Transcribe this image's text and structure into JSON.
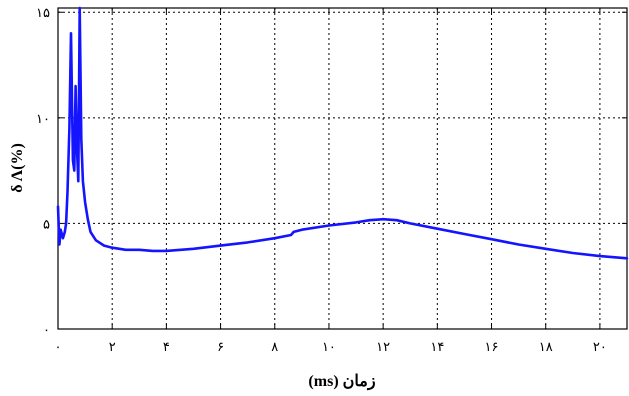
{
  "chart_data": {
    "type": "line",
    "title": "",
    "xlabel": "زمان (ms)",
    "ylabel": "δ Λ(%)",
    "xlim": [
      0,
      21
    ],
    "ylim": [
      0,
      15.2
    ],
    "grid": true,
    "x_ticks": [
      0,
      2,
      4,
      6,
      8,
      10,
      12,
      14,
      16,
      18,
      20
    ],
    "x_tick_labels": [
      "۰",
      "۲",
      "۴",
      "۶",
      "۸",
      "۱۰",
      "۱۲",
      "۱۴",
      "۱۶",
      "۱۸",
      "۲۰"
    ],
    "y_ticks": [
      0,
      5,
      10,
      15
    ],
    "y_tick_labels": [
      "۰",
      "۵",
      "۱۰",
      "۱۵"
    ],
    "line_color": "#1414ff",
    "series": [
      {
        "points": [
          [
            0.0,
            5.8
          ],
          [
            0.05,
            4.0
          ],
          [
            0.1,
            4.7
          ],
          [
            0.18,
            4.3
          ],
          [
            0.25,
            4.6
          ],
          [
            0.3,
            5.0
          ],
          [
            0.35,
            6.5
          ],
          [
            0.42,
            9.5
          ],
          [
            0.48,
            14.0
          ],
          [
            0.55,
            8.0
          ],
          [
            0.6,
            7.5
          ],
          [
            0.65,
            11.5
          ],
          [
            0.7,
            8.5
          ],
          [
            0.75,
            7.0
          ],
          [
            0.8,
            15.2
          ],
          [
            0.86,
            9.0
          ],
          [
            0.92,
            7.0
          ],
          [
            1.0,
            6.0
          ],
          [
            1.1,
            5.2
          ],
          [
            1.2,
            4.6
          ],
          [
            1.4,
            4.2
          ],
          [
            1.7,
            3.95
          ],
          [
            2.0,
            3.85
          ],
          [
            2.5,
            3.75
          ],
          [
            3.0,
            3.75
          ],
          [
            3.5,
            3.7
          ],
          [
            4.0,
            3.7
          ],
          [
            5.0,
            3.8
          ],
          [
            6.0,
            3.95
          ],
          [
            7.0,
            4.1
          ],
          [
            8.0,
            4.3
          ],
          [
            8.6,
            4.45
          ],
          [
            8.7,
            4.6
          ],
          [
            9.0,
            4.7
          ],
          [
            10.0,
            4.9
          ],
          [
            11.0,
            5.05
          ],
          [
            11.5,
            5.15
          ],
          [
            12.0,
            5.2
          ],
          [
            12.5,
            5.15
          ],
          [
            13.0,
            5.0
          ],
          [
            14.0,
            4.75
          ],
          [
            15.0,
            4.5
          ],
          [
            16.0,
            4.25
          ],
          [
            17.0,
            4.0
          ],
          [
            18.0,
            3.8
          ],
          [
            19.0,
            3.6
          ],
          [
            20.0,
            3.45
          ],
          [
            21.0,
            3.35
          ]
        ]
      }
    ]
  }
}
